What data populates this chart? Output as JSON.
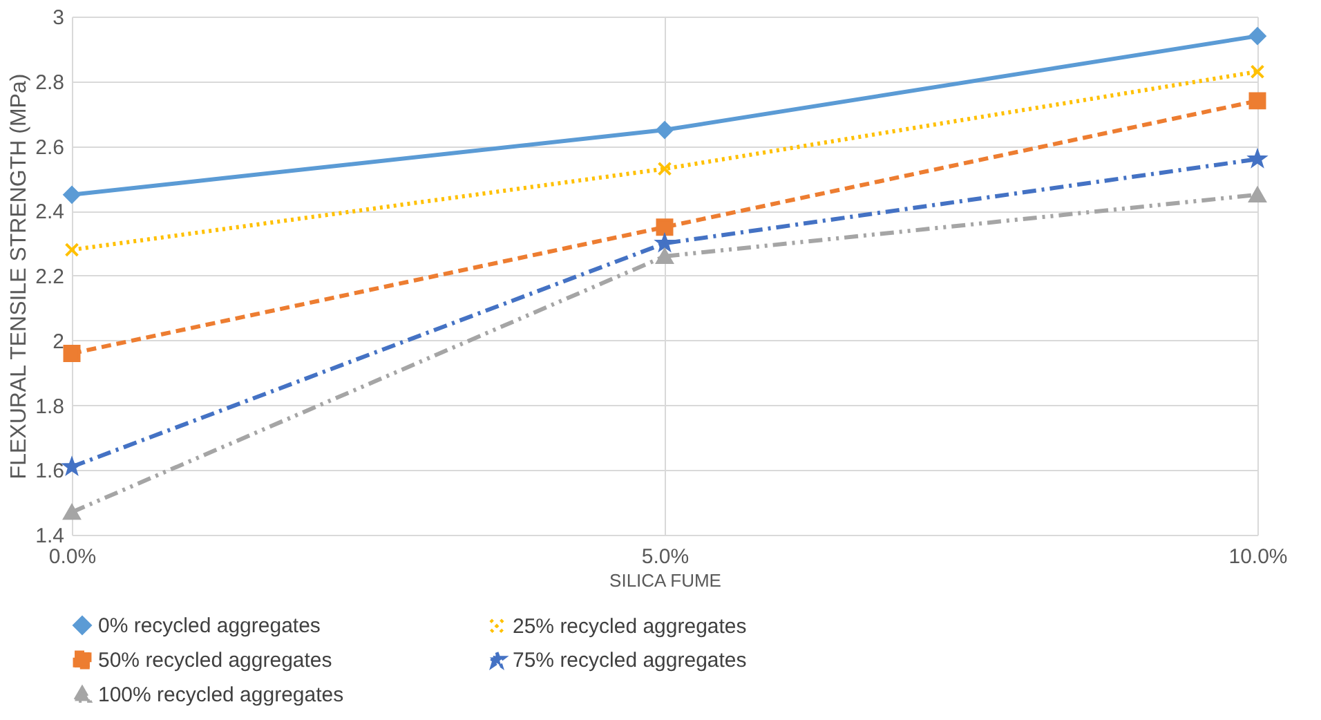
{
  "chart_data": {
    "type": "line",
    "xlabel": "SILICA FUME",
    "ylabel": "FLEXURAL TENSILE STRENGTH (MPa)",
    "categories": [
      "0.0%",
      "5.0%",
      "10.0%"
    ],
    "ylim": [
      1.4,
      3
    ],
    "yticks": [
      1.4,
      1.6,
      1.8,
      2,
      2.2,
      2.4,
      2.6,
      2.8,
      3
    ],
    "grid": true,
    "legend": "bottom",
    "series": [
      {
        "name": "0% recycled aggregates",
        "color": "#5b9bd5",
        "values": [
          2.45,
          2.65,
          2.94
        ],
        "marker": "diamond",
        "line_style": "solid"
      },
      {
        "name": "25% recycled aggregates",
        "color": "#ffc000",
        "values": [
          2.28,
          2.53,
          2.83
        ],
        "marker": "cross",
        "line_style": "dotted"
      },
      {
        "name": "50% recycled aggregates",
        "color": "#ed7d31",
        "values": [
          1.96,
          2.35,
          2.74
        ],
        "marker": "square",
        "line_style": "dashed"
      },
      {
        "name": "75% recycled aggregates",
        "color": "#4472c4",
        "values": [
          1.61,
          2.3,
          2.56
        ],
        "marker": "star",
        "line_style": "dashdot"
      },
      {
        "name": "100% recycled aggregates",
        "color": "#a5a5a5",
        "values": [
          1.47,
          2.26,
          2.45
        ],
        "marker": "triangle",
        "line_style": "dashdotdot"
      }
    ]
  }
}
